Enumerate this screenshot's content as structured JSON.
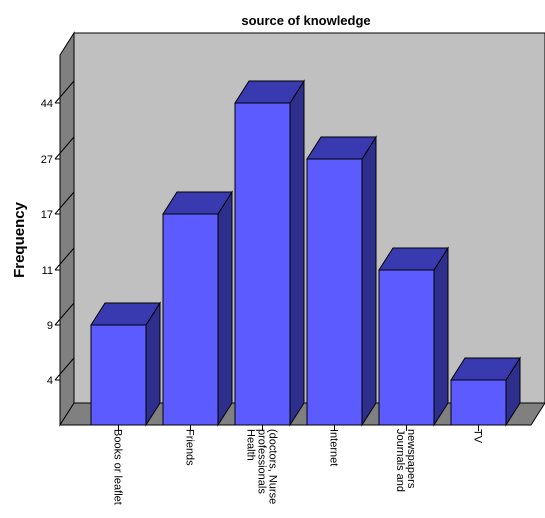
{
  "chart_data": {
    "type": "bar",
    "title": "source of knowledge",
    "xlabel": "",
    "ylabel": "Frequency",
    "categories": [
      [
        "Books or leaflet"
      ],
      [
        "Friends"
      ],
      [
        "Health",
        "professionals",
        "(doctors, Nurse"
      ],
      [
        "Internet"
      ],
      [
        "Journals and",
        "newspapers"
      ],
      [
        "TV"
      ]
    ],
    "values": [
      9,
      17,
      44,
      27,
      11,
      4
    ],
    "y_ticks": [
      "4",
      "9",
      "11",
      "17",
      "27",
      "44"
    ],
    "grid": false,
    "style": "3d",
    "colors": {
      "bar_front": "#5b5bff",
      "bar_top": "#3a3ab0",
      "bar_side": "#2e2e8c",
      "back_wall": "#c0c0c0",
      "side_wall": "#808080",
      "floor": "#808080"
    }
  }
}
